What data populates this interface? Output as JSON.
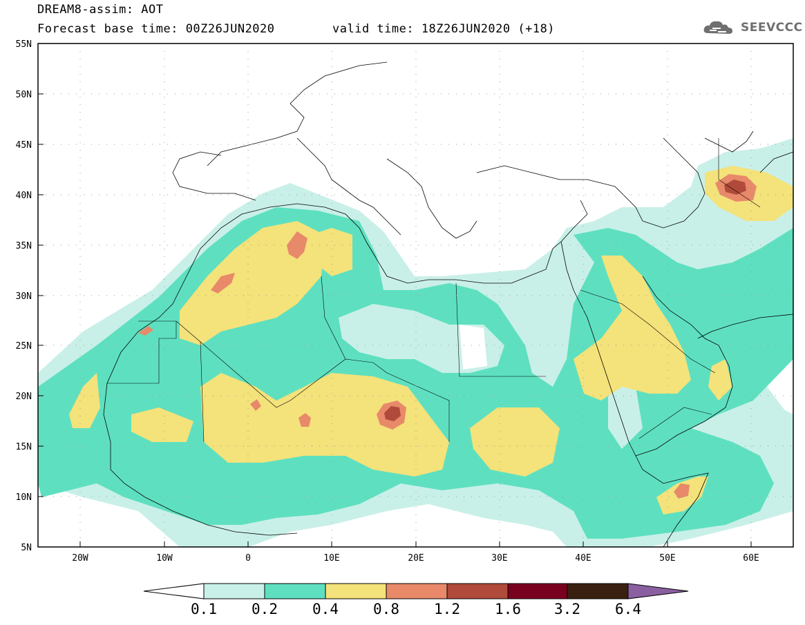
{
  "title": {
    "line1": "DREAM8-assim: AOT",
    "line2_base": "Forecast base time: 00Z26JUN2020",
    "line2_valid": "valid time: 18Z26JUN2020 (+18)"
  },
  "logo": {
    "text": "SEEVCCC",
    "icon": "cloud-icon"
  },
  "axes": {
    "lon_ticks": [
      "20W",
      "10W",
      "0",
      "10E",
      "20E",
      "30E",
      "40E",
      "50E",
      "60E"
    ],
    "lat_ticks": [
      "55N",
      "50N",
      "45N",
      "40N",
      "35N",
      "30N",
      "25N",
      "20N",
      "15N",
      "10N",
      "5N"
    ],
    "lon_range": [
      -25,
      65
    ],
    "lat_range": [
      5,
      55
    ],
    "grid": "dotted"
  },
  "colorbar": {
    "levels": [
      "0.1",
      "0.2",
      "0.4",
      "0.8",
      "1.2",
      "1.6",
      "3.2",
      "6.4"
    ],
    "colors": [
      "#ffffff",
      "#c9f0e8",
      "#5ee0c0",
      "#f4e27a",
      "#e8896a",
      "#b04a3a",
      "#7a0020",
      "#3a2010",
      "#8a60a0"
    ]
  },
  "chart_data": {
    "type": "heatmap",
    "variable": "AOT",
    "lon_range": [
      -25,
      65
    ],
    "lat_range": [
      5,
      55
    ],
    "features": [
      {
        "region": "Sahara / Sahel belt",
        "lon": [
          -20,
          45
        ],
        "lat": [
          8,
          35
        ],
        "aot": "0.2-0.8"
      },
      {
        "region": "Morocco / W Algeria",
        "lon": [
          -6,
          10
        ],
        "lat": [
          25,
          37
        ],
        "aot": "0.4-0.8"
      },
      {
        "region": "Atlas hotspot",
        "lon": -3,
        "lat": 31.5,
        "aot": "0.8-1.2"
      },
      {
        "region": "NE Algeria hotspot",
        "lon": 6,
        "lat": 35,
        "aot": "0.8-1.2"
      },
      {
        "region": "Chad hotspot",
        "lon": 17.5,
        "lat": 18,
        "aot": "1.2-1.6"
      },
      {
        "region": "Niger hotspot",
        "lon": 6,
        "lat": 17,
        "aot": "0.8-1.2"
      },
      {
        "region": "Arabian Peninsula",
        "lon": [
          38,
          55
        ],
        "lat": [
          15,
          33
        ],
        "aot": "0.4-0.8"
      },
      {
        "region": "Turkmenistan hotspot",
        "lon": 58,
        "lat": 40.5,
        "aot": "1.2-1.6"
      },
      {
        "region": "Somalia coast hotspot",
        "lon": 51.5,
        "lat": 10.5,
        "aot": "0.8-1.2"
      },
      {
        "region": "Eastern Mediterranean",
        "lon": [
          25,
          35
        ],
        "lat": [
          30,
          33
        ],
        "aot": "0.1-0.2"
      }
    ]
  }
}
